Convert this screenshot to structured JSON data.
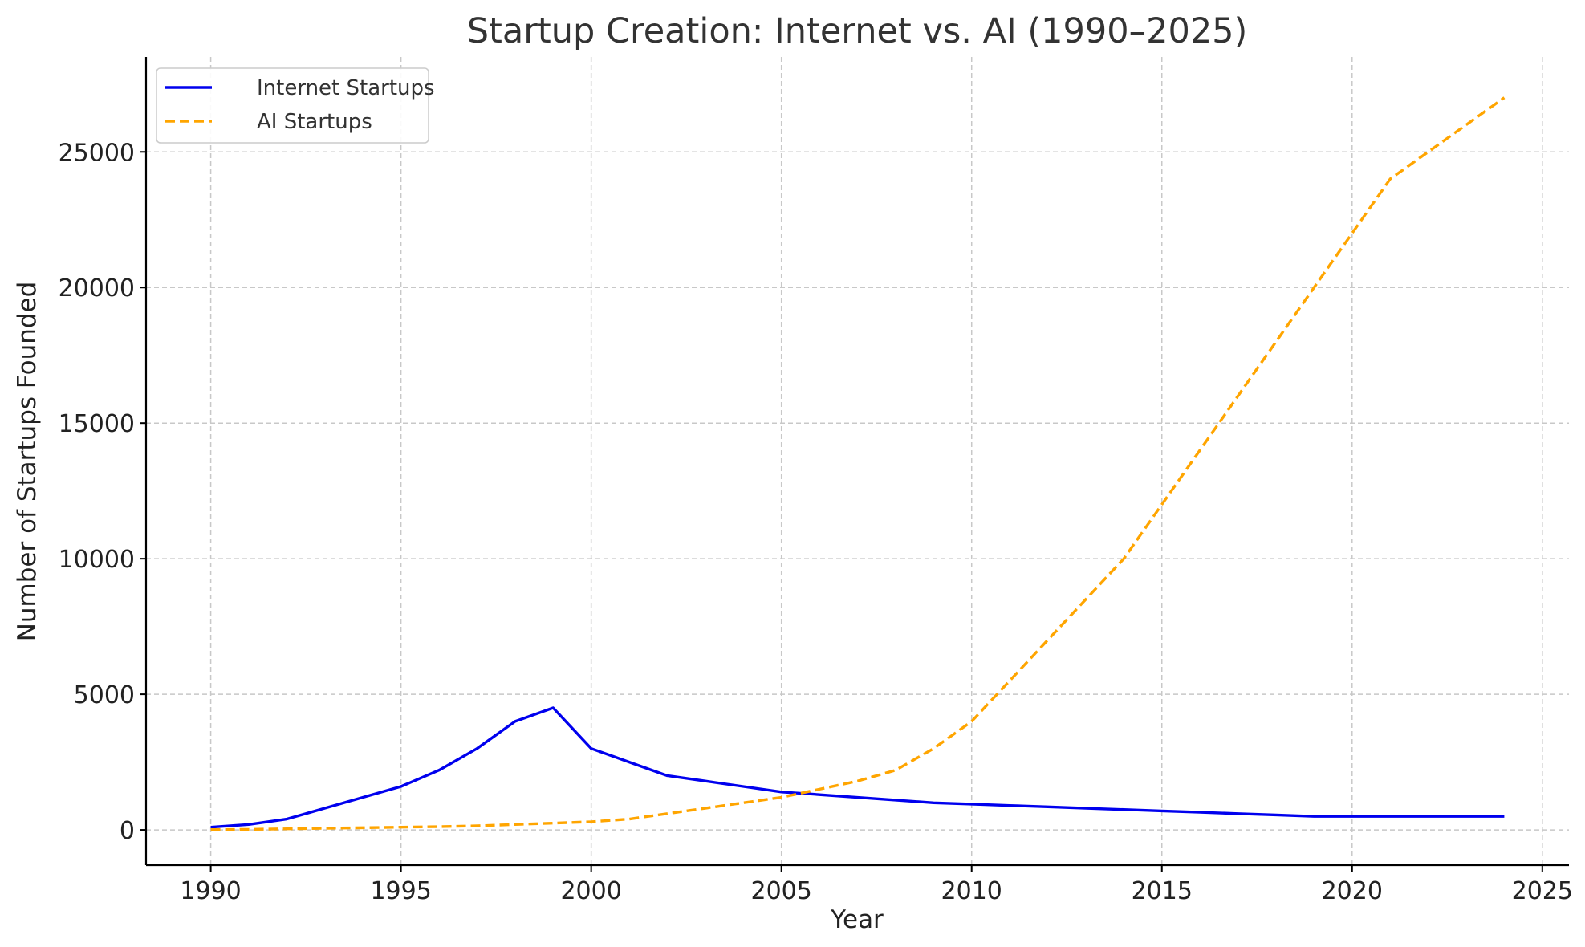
{
  "chart_data": {
    "type": "line",
    "title": "Startup Creation: Internet vs. AI (1990–2025)",
    "xlabel": "Year",
    "ylabel": "Number of Startups Founded",
    "xlim": [
      1988.3,
      2025.7
    ],
    "ylim": [
      -1300,
      28500
    ],
    "xticks": [
      1990,
      1995,
      2000,
      2005,
      2010,
      2015,
      2020,
      2025
    ],
    "yticks": [
      0,
      5000,
      10000,
      15000,
      20000,
      25000
    ],
    "grid": true,
    "legend_position": "top-left",
    "series": [
      {
        "name": "Internet Startups",
        "color": "#0000ee",
        "style": "solid",
        "x": [
          1990,
          1991,
          1992,
          1993,
          1994,
          1995,
          1996,
          1997,
          1998,
          1999,
          2000,
          2001,
          2002,
          2003,
          2004,
          2005,
          2006,
          2007,
          2008,
          2009,
          2010,
          2011,
          2012,
          2013,
          2014,
          2015,
          2016,
          2017,
          2018,
          2019,
          2020,
          2021,
          2022,
          2023,
          2024
        ],
        "y": [
          100,
          200,
          400,
          800,
          1200,
          1600,
          2200,
          3000,
          4000,
          4500,
          3000,
          2500,
          2000,
          1800,
          1600,
          1400,
          1300,
          1200,
          1100,
          1000,
          950,
          900,
          850,
          800,
          750,
          700,
          650,
          600,
          550,
          500,
          500,
          500,
          500,
          500,
          500
        ]
      },
      {
        "name": "AI Startups",
        "color": "#ffa500",
        "style": "dashed",
        "x": [
          1990,
          1991,
          1992,
          1993,
          1994,
          1995,
          1996,
          1997,
          1998,
          1999,
          2000,
          2001,
          2002,
          2003,
          2004,
          2005,
          2006,
          2007,
          2008,
          2009,
          2010,
          2011,
          2012,
          2013,
          2014,
          2015,
          2016,
          2017,
          2018,
          2019,
          2020,
          2021,
          2022,
          2023,
          2024
        ],
        "y": [
          10,
          20,
          40,
          60,
          80,
          100,
          120,
          150,
          200,
          250,
          300,
          400,
          600,
          800,
          1000,
          1200,
          1500,
          1800,
          2200,
          3000,
          4000,
          5500,
          7000,
          8500,
          10000,
          12000,
          14000,
          16000,
          18000,
          20000,
          22000,
          24000,
          25000,
          26000,
          27000
        ]
      }
    ]
  }
}
